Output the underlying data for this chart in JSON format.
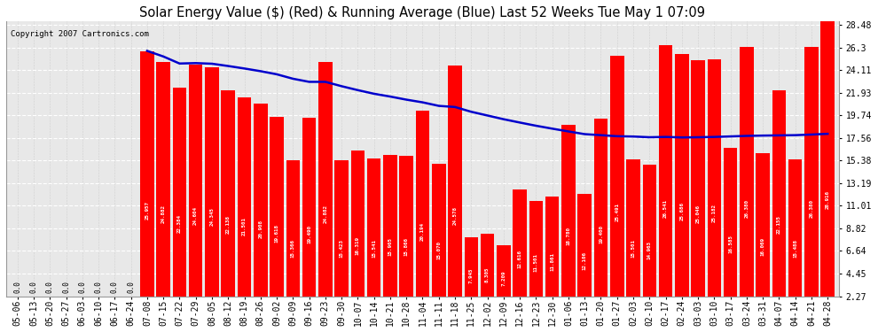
{
  "title": "Solar Energy Value ($) (Red) & Running Average (Blue) Last 52 Weeks Tue May 1 07:09",
  "copyright_text": "Copyright 2007 Cartronics.com",
  "bar_color": "#ff0000",
  "line_color": "#0000cc",
  "background_color": "#ffffff",
  "plot_background_color": "#e8e8e8",
  "grid_color": "#bbbbbb",
  "categories": [
    "05-06",
    "05-13",
    "05-20",
    "05-27",
    "06-03",
    "06-10",
    "06-17",
    "06-24",
    "07-08",
    "07-15",
    "07-22",
    "07-29",
    "08-05",
    "08-12",
    "08-19",
    "08-26",
    "09-02",
    "09-09",
    "09-16",
    "09-23",
    "09-30",
    "10-07",
    "10-14",
    "10-21",
    "10-28",
    "11-04",
    "11-11",
    "11-18",
    "11-25",
    "12-02",
    "12-09",
    "12-16",
    "12-23",
    "12-30",
    "01-06",
    "01-13",
    "01-20",
    "01-27",
    "02-03",
    "02-10",
    "02-17",
    "02-24",
    "03-03",
    "03-10",
    "03-17",
    "03-24",
    "03-31",
    "04-07",
    "04-14",
    "04-21",
    "04-28"
  ],
  "values": [
    0.0,
    0.0,
    0.0,
    0.0,
    0.0,
    0.0,
    0.0,
    0.0,
    25.957,
    24.882,
    22.384,
    24.604,
    24.345,
    22.138,
    21.501,
    20.908,
    19.618,
    15.366,
    19.49,
    24.882,
    15.423,
    16.319,
    15.541,
    15.905,
    15.866,
    20.194,
    15.07,
    24.578,
    7.945,
    8.305,
    7.209,
    12.616,
    11.501,
    11.861,
    18.78,
    12.106,
    19.4,
    25.491,
    15.501,
    14.963,
    26.541,
    25.686,
    25.046,
    25.182,
    16.585,
    26.38,
    16.069,
    22.155,
    15.488,
    26.38,
    28.916
  ],
  "running_avg": [
    0.0,
    0.0,
    0.0,
    0.0,
    0.0,
    0.0,
    0.0,
    0.0,
    25.96,
    25.42,
    24.74,
    24.78,
    24.72,
    24.5,
    24.26,
    24.0,
    23.7,
    23.27,
    22.97,
    22.97,
    22.55,
    22.17,
    21.82,
    21.55,
    21.25,
    20.99,
    20.65,
    20.54,
    20.08,
    19.72,
    19.36,
    19.04,
    18.73,
    18.45,
    18.18,
    17.92,
    17.82,
    17.72,
    17.69,
    17.62,
    17.65,
    17.6,
    17.62,
    17.65,
    17.7,
    17.75,
    17.78,
    17.8,
    17.82,
    17.88,
    17.95
  ],
  "yticks": [
    2.27,
    4.45,
    6.64,
    8.82,
    11.01,
    13.19,
    15.38,
    17.56,
    19.74,
    21.93,
    24.11,
    26.3,
    28.48
  ],
  "ymin": 2.27,
  "ymax": 28.48
}
